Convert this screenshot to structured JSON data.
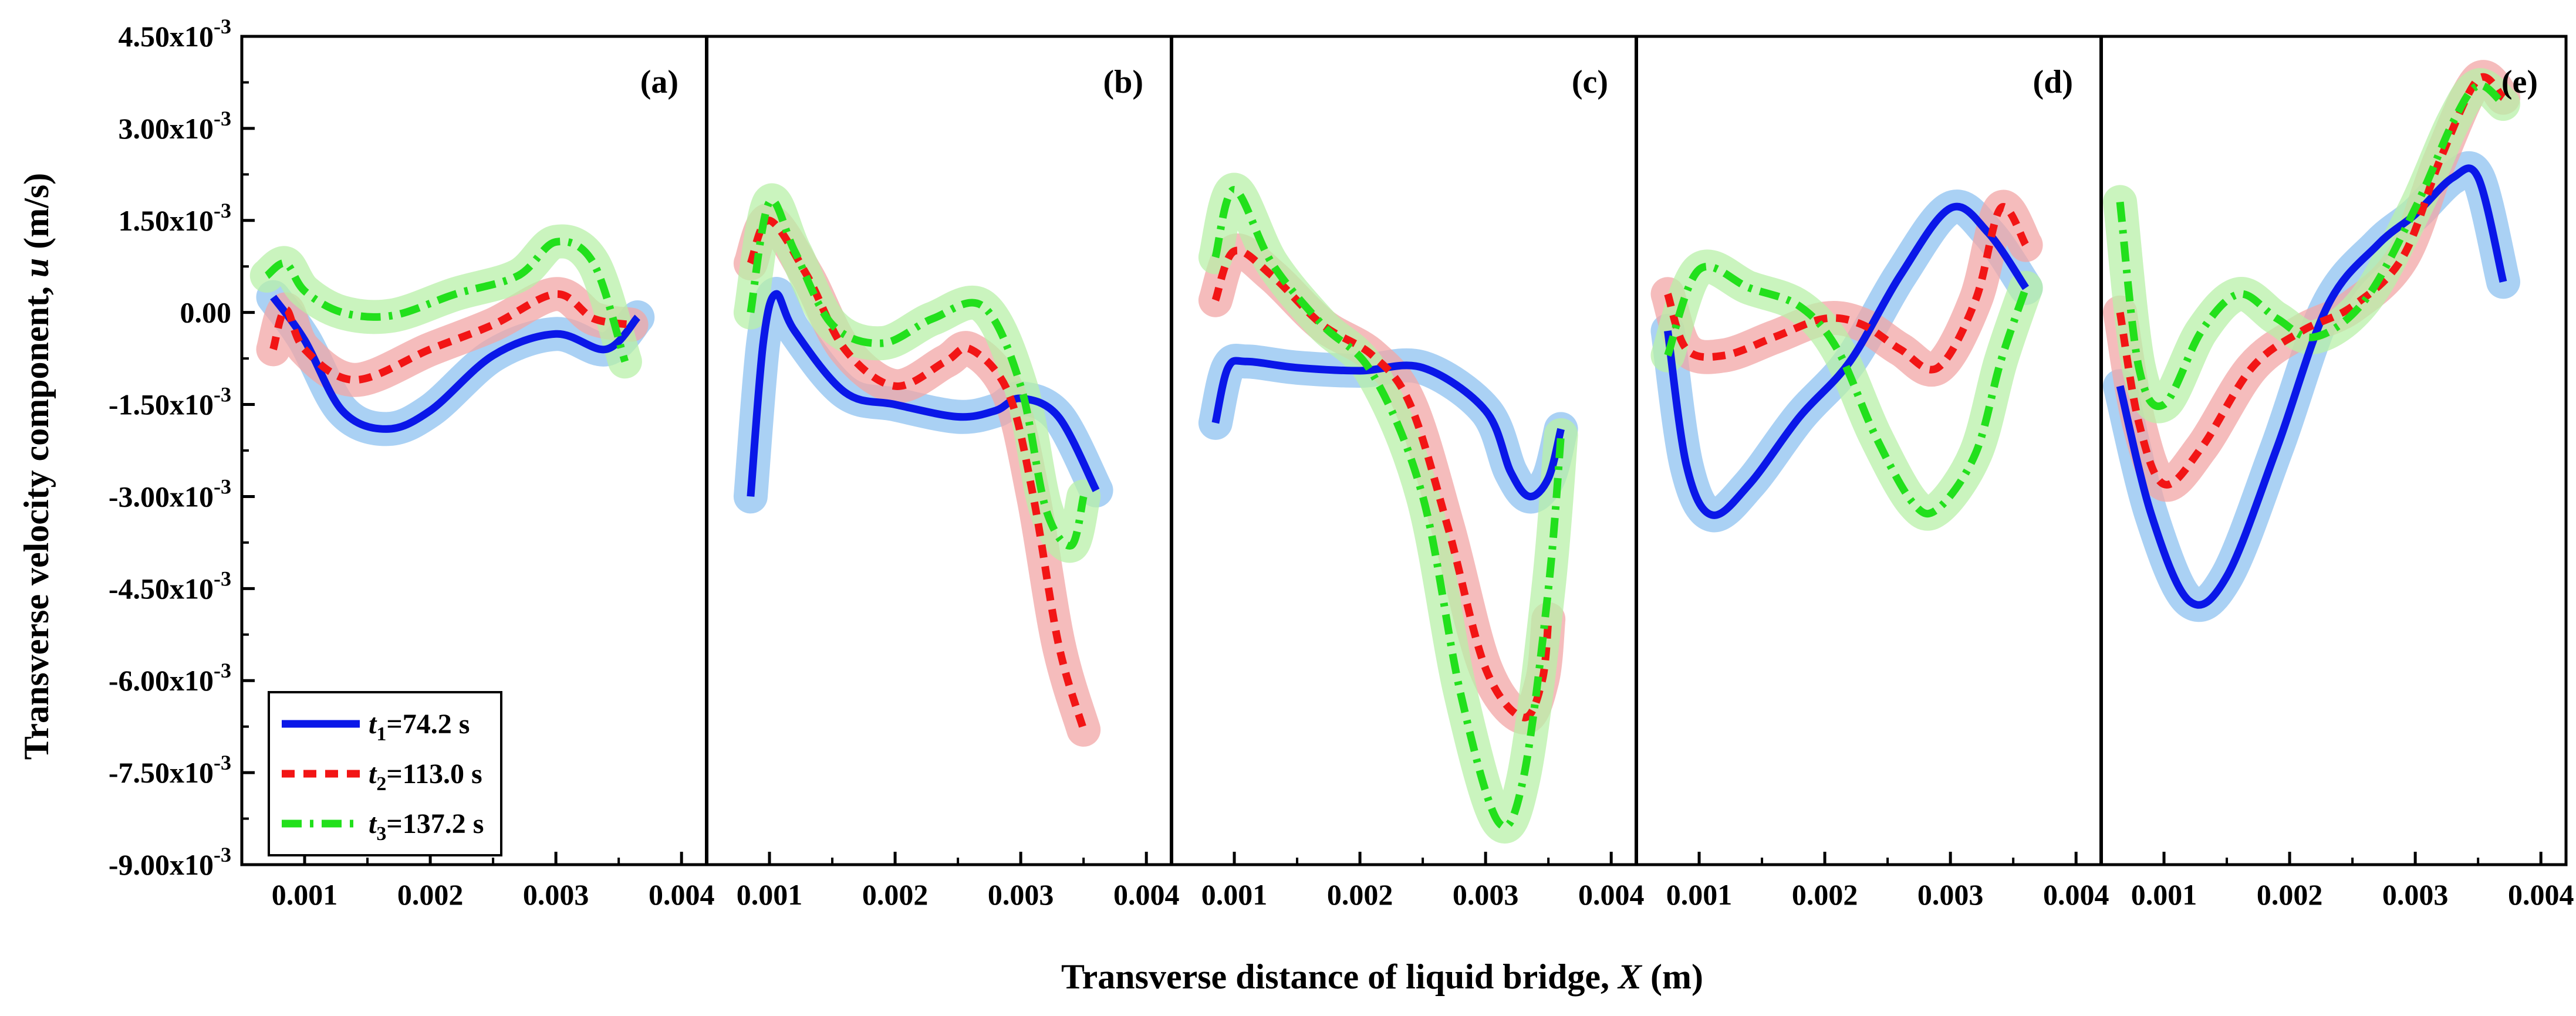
{
  "chart_data": {
    "type": "line",
    "ylabel": "Transverse velocity component, u (m/s)",
    "xlabel": "Transverse distance of liquid bridge, X (m)",
    "ylim": [
      -0.009,
      0.0045
    ],
    "yticks": [
      0.0045,
      0.003,
      0.0015,
      0.0,
      -0.0015,
      -0.003,
      -0.0045,
      -0.006,
      -0.0075,
      -0.009
    ],
    "ytick_labels": [
      {
        "mantissa": "4.50x10",
        "exp": "-3"
      },
      {
        "mantissa": "3.00x10",
        "exp": "-3"
      },
      {
        "mantissa": "1.50x10",
        "exp": "-3"
      },
      {
        "mantissa": "0.00",
        "exp": ""
      },
      {
        "mantissa": "-1.50x10",
        "exp": "-3"
      },
      {
        "mantissa": "-3.00x10",
        "exp": "-3"
      },
      {
        "mantissa": "-4.50x10",
        "exp": "-3"
      },
      {
        "mantissa": "-6.00x10",
        "exp": "-3"
      },
      {
        "mantissa": "-7.50x10",
        "exp": "-3"
      },
      {
        "mantissa": "-9.00x10",
        "exp": "-3"
      }
    ],
    "xlim": [
      0.0005,
      0.0042
    ],
    "xticks": [
      0.001,
      0.002,
      0.003,
      0.004
    ],
    "xtick_labels": [
      "0.001",
      "0.002",
      "0.003",
      "0.004"
    ],
    "colors": {
      "t1": "#0a17e8",
      "t2": "#f21515",
      "t3": "#22e01c",
      "band_t1": "#8ec2f0",
      "band_t2": "#f2a6a6",
      "band_t3": "#b8f0a8"
    },
    "legend": [
      {
        "key": "t1",
        "sym": "t",
        "sub": "1",
        "text": "=74.2 s"
      },
      {
        "key": "t2",
        "sym": "t",
        "sub": "2",
        "text": "=113.0 s"
      },
      {
        "key": "t3",
        "sym": "t",
        "sub": "3",
        "text": "=137.2 s"
      }
    ],
    "panels": [
      {
        "label": "(a)",
        "series": [
          {
            "key": "t1",
            "x": [
              0.00075,
              0.001,
              0.0013,
              0.00165,
              0.002,
              0.0025,
              0.003,
              0.0034,
              0.00365
            ],
            "y": [
              0.00025,
              -0.00045,
              -0.0016,
              -0.0019,
              -0.0016,
              -0.0007,
              -0.00035,
              -0.0006,
              -8e-05
            ]
          },
          {
            "key": "t2",
            "x": [
              0.00075,
              0.00085,
              0.001,
              0.0014,
              0.002,
              0.0025,
              0.003,
              0.0033,
              0.0036
            ],
            "y": [
              -0.0006,
              5e-05,
              -0.0006,
              -0.0011,
              -0.0006,
              -0.0002,
              0.0003,
              -0.0001,
              -0.0002
            ]
          },
          {
            "key": "t3",
            "x": [
              0.0007,
              0.00085,
              0.001,
              0.0013,
              0.0017,
              0.0022,
              0.0027,
              0.003,
              0.0033,
              0.00355
            ],
            "y": [
              0.0006,
              0.0008,
              0.00035,
              0.0,
              -5e-05,
              0.0003,
              0.0006,
              0.00115,
              0.0008,
              -0.0008
            ]
          }
        ]
      },
      {
        "label": "(b)",
        "series": [
          {
            "key": "t1",
            "x": [
              0.00085,
              0.00095,
              0.00105,
              0.0012,
              0.0016,
              0.002,
              0.0025,
              0.0028,
              0.003,
              0.0033,
              0.0036
            ],
            "y": [
              -0.003,
              -0.0005,
              0.0003,
              -0.0003,
              -0.0013,
              -0.0015,
              -0.0017,
              -0.0016,
              -0.0014,
              -0.0017,
              -0.0029
            ]
          },
          {
            "key": "t2",
            "x": [
              0.00085,
              0.001,
              0.0013,
              0.0016,
              0.002,
              0.0024,
              0.0026,
              0.0029,
              0.0031,
              0.0033,
              0.0035
            ],
            "y": [
              0.0008,
              0.0015,
              0.0006,
              -0.0006,
              -0.0012,
              -0.0008,
              -0.0006,
              -0.0013,
              -0.003,
              -0.0054,
              -0.0068
            ]
          },
          {
            "key": "t3",
            "x": [
              0.00085,
              0.001,
              0.0012,
              0.0015,
              0.0019,
              0.0023,
              0.0027,
              0.003,
              0.0032,
              0.0034,
              0.0035
            ],
            "y": [
              0.0,
              0.0018,
              0.001,
              -0.0002,
              -0.0005,
              -0.0001,
              0.0001,
              -0.0012,
              -0.0032,
              -0.0038,
              -0.003
            ]
          }
        ]
      },
      {
        "label": "(c)",
        "series": [
          {
            "key": "t1",
            "x": [
              0.00085,
              0.00095,
              0.0011,
              0.0015,
              0.002,
              0.0025,
              0.003,
              0.0032,
              0.00335,
              0.0035,
              0.0036
            ],
            "y": [
              -0.0018,
              -0.0009,
              -0.0008,
              -0.0009,
              -0.00095,
              -0.0009,
              -0.0016,
              -0.0026,
              -0.003,
              -0.0027,
              -0.0019
            ]
          },
          {
            "key": "t2",
            "x": [
              0.00085,
              0.001,
              0.0013,
              0.0017,
              0.0021,
              0.0024,
              0.0027,
              0.003,
              0.0033,
              0.00345,
              0.0035
            ],
            "y": [
              0.0002,
              0.001,
              0.0006,
              -0.0002,
              -0.0007,
              -0.0015,
              -0.0035,
              -0.0058,
              -0.0066,
              -0.006,
              -0.005
            ]
          },
          {
            "key": "t3",
            "x": [
              0.00085,
              0.001,
              0.0013,
              0.0017,
              0.0021,
              0.0025,
              0.0028,
              0.0031,
              0.0033,
              0.0035,
              0.0036
            ],
            "y": [
              0.0009,
              0.002,
              0.0008,
              -0.0002,
              -0.001,
              -0.003,
              -0.0062,
              -0.0083,
              -0.0076,
              -0.0045,
              -0.002
            ]
          }
        ]
      },
      {
        "label": "(d)",
        "series": [
          {
            "key": "t1",
            "x": [
              0.00075,
              0.0009,
              0.0011,
              0.0014,
              0.0018,
              0.0022,
              0.0026,
              0.003,
              0.0033,
              0.0036
            ],
            "y": [
              -0.0003,
              -0.0025,
              -0.0033,
              -0.0028,
              -0.0017,
              -0.0008,
              0.0006,
              0.0017,
              0.0013,
              0.0004
            ]
          },
          {
            "key": "t2",
            "x": [
              0.00075,
              0.0009,
              0.0012,
              0.0016,
              0.002,
              0.0023,
              0.0026,
              0.0029,
              0.0032,
              0.0034,
              0.0036
            ],
            "y": [
              0.0003,
              -0.0006,
              -0.0007,
              -0.0004,
              -0.0001,
              -0.0002,
              -0.0006,
              -0.0009,
              0.0002,
              0.0017,
              0.0011
            ]
          },
          {
            "key": "t3",
            "x": [
              0.00075,
              0.001,
              0.0014,
              0.0018,
              0.0021,
              0.0024,
              0.0027,
              0.0029,
              0.0032,
              0.0034,
              0.0036
            ],
            "y": [
              -0.0007,
              0.0007,
              0.0004,
              0.0001,
              -0.0006,
              -0.002,
              -0.0031,
              -0.0032,
              -0.0023,
              -0.0008,
              0.0004
            ]
          }
        ]
      },
      {
        "label": "(e)",
        "series": [
          {
            "key": "t1",
            "x": [
              0.00065,
              0.0009,
              0.0012,
              0.0015,
              0.0019,
              0.0023,
              0.0027,
              0.003,
              0.0033,
              0.0035,
              0.0037
            ],
            "y": [
              -0.0012,
              -0.0033,
              -0.0047,
              -0.0043,
              -0.0022,
              0.0001,
              0.0011,
              0.0016,
              0.0022,
              0.0022,
              0.0005
            ]
          },
          {
            "key": "t2",
            "x": [
              0.00065,
              0.0008,
              0.001,
              0.0013,
              0.0017,
              0.0021,
              0.0025,
              0.0029,
              0.0032,
              0.0035,
              0.0037
            ],
            "y": [
              0.0,
              -0.0018,
              -0.0028,
              -0.0022,
              -0.0009,
              -0.0003,
              0.0001,
              0.0009,
              0.0025,
              0.0038,
              0.0035
            ]
          },
          {
            "key": "t3",
            "x": [
              0.00065,
              0.0008,
              0.001,
              0.0013,
              0.0016,
              0.0019,
              0.0022,
              0.0026,
              0.003,
              0.0033,
              0.0035,
              0.0037
            ],
            "y": [
              0.0018,
              -0.0009,
              -0.0015,
              -0.0003,
              0.0003,
              -0.0001,
              -0.0004,
              0.0002,
              0.0017,
              0.0031,
              0.0037,
              0.0034
            ]
          }
        ]
      }
    ]
  }
}
